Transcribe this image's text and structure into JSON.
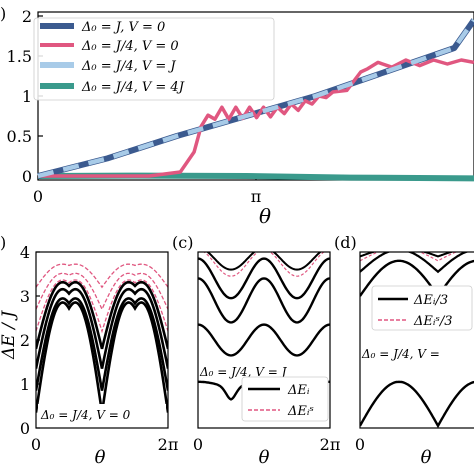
{
  "figure": {
    "panel_labels": {
      "a": ")",
      "b": ")",
      "c": "(c)",
      "d": "(d)"
    }
  },
  "chart_data": [
    {
      "panel": "a",
      "type": "line",
      "xlabel": "θ",
      "ylabel": "",
      "x_ticks": [
        {
          "value": 0,
          "label": "0"
        },
        {
          "value": 3.14159,
          "label": "π"
        }
      ],
      "y_ticks": [
        {
          "value": 0,
          "label": "0"
        },
        {
          "value": 0.5,
          "label": "0.5"
        },
        {
          "value": 1.0,
          "label": "1"
        },
        {
          "value": 1.5,
          "label": "1.5"
        },
        {
          "value": 2.0,
          "label": "2"
        }
      ],
      "xlim": [
        0,
        6.28318
      ],
      "ylim": [
        -0.05,
        2.05
      ],
      "legend_position": "top-left",
      "series": [
        {
          "name": "Δ₀ = J,  V = 0",
          "color": "#3b5a8f",
          "style": "solid-thick",
          "x": [
            0,
            1,
            2,
            3,
            4,
            5,
            6,
            6.28318
          ],
          "y": [
            0,
            0.22,
            0.5,
            0.75,
            1.0,
            1.3,
            1.6,
            1.95
          ]
        },
        {
          "name": "Δ₀ = J/4,  V = 0",
          "color": "#e05780",
          "style": "solid",
          "x": [
            0,
            1.6,
            2.05,
            2.25,
            2.35,
            2.45,
            2.55,
            2.65,
            2.75,
            2.85,
            2.95,
            3.05,
            3.15,
            3.25,
            3.35,
            3.45,
            3.55,
            3.65,
            3.75,
            3.85,
            3.95,
            4.05,
            4.15,
            4.25,
            4.45,
            4.65,
            4.75,
            4.9,
            5.1,
            5.3,
            5.5,
            5.7,
            5.9,
            6.1,
            6.28318
          ],
          "y": [
            0,
            0.0,
            0.05,
            0.3,
            0.62,
            0.76,
            0.71,
            0.86,
            0.71,
            0.86,
            0.72,
            0.86,
            0.73,
            0.86,
            0.74,
            0.86,
            0.78,
            0.9,
            0.82,
            0.94,
            0.9,
            1.0,
            0.98,
            1.05,
            1.07,
            1.3,
            1.34,
            1.42,
            1.36,
            1.45,
            1.38,
            1.45,
            1.4,
            1.45,
            1.42
          ]
        },
        {
          "name": "Δ₀ = J/4,  V = J",
          "color": "#a8cbe8",
          "style": "dashed-thick",
          "x": [
            0,
            1,
            2,
            3,
            4,
            5,
            6,
            6.28318
          ],
          "y": [
            0,
            0.22,
            0.5,
            0.75,
            1.0,
            1.3,
            1.6,
            1.95
          ]
        },
        {
          "name": "Δ₀ = J/4,  V = 4J",
          "color": "#3a9a8c",
          "style": "solid-thick",
          "x": [
            0,
            1.5,
            3.0,
            4.5,
            6.28318
          ],
          "y": [
            0.0,
            0.005,
            0.0,
            -0.02,
            -0.03
          ]
        }
      ]
    },
    {
      "panel": "b",
      "type": "line",
      "xlabel": "θ",
      "ylabel": "ΔE / J",
      "x_ticks": [
        {
          "value": 0,
          "label": "0"
        },
        {
          "value": 6.28318,
          "label": "2π"
        }
      ],
      "y_ticks": [
        {
          "value": 0,
          "label": "0"
        },
        {
          "value": 1,
          "label": "1"
        },
        {
          "value": 2,
          "label": "2"
        },
        {
          "value": 3,
          "label": "3"
        },
        {
          "value": 4,
          "label": "4"
        }
      ],
      "xlim": [
        0,
        6.28318
      ],
      "ylim": [
        0,
        4
      ],
      "annotation": "Δ₀ = J/4,  V = 0",
      "series": [
        {
          "name": "",
          "color": "#000000",
          "style": "solid",
          "amplitude": 4.3,
          "offset": 0.35
        },
        {
          "name": "",
          "color": "#000000",
          "style": "solid",
          "amplitude": 3.6,
          "offset": 0.85
        },
        {
          "name": "",
          "color": "#000000",
          "style": "solid",
          "amplitude": 3.1,
          "offset": 1.35
        },
        {
          "name": "",
          "color": "#000000",
          "style": "solid",
          "amplitude": 2.6,
          "offset": 1.8
        },
        {
          "name": "",
          "color": "#e05780",
          "style": "dashed",
          "amplitude": 2.0,
          "offset": 2.2
        },
        {
          "name": "",
          "color": "#e05780",
          "style": "dashed",
          "amplitude": 1.4,
          "offset": 2.7
        },
        {
          "name": "",
          "color": "#e05780",
          "style": "dashed",
          "amplitude": 0.9,
          "offset": 3.2
        }
      ]
    },
    {
      "panel": "c",
      "type": "line",
      "xlabel": "θ",
      "ylabel": "",
      "x_ticks": [
        {
          "value": 0,
          "label": "0"
        },
        {
          "value": 6.28318,
          "label": "2π"
        }
      ],
      "y_ticks": [],
      "xlim": [
        0,
        6.28318
      ],
      "ylim": [
        0,
        4
      ],
      "annotation": "Δ₀ = J/4,  V = J",
      "legend": [
        {
          "label": "ΔEᵢ",
          "color": "#000000",
          "style": "solid"
        },
        {
          "label": "ΔEᵢˢ",
          "color": "#e05780",
          "style": "dashed"
        }
      ],
      "legend_position": "bottom-right"
    },
    {
      "panel": "d",
      "type": "line",
      "xlabel": "θ",
      "ylabel": "",
      "x_ticks": [
        {
          "value": 0,
          "label": "0"
        }
      ],
      "y_ticks": [],
      "xlim": [
        0,
        6.28318
      ],
      "ylim": [
        0,
        4
      ],
      "annotation": "Δ₀ = J/4,  V =",
      "legend": [
        {
          "label": "ΔEᵢ/3",
          "color": "#000000",
          "style": "solid"
        },
        {
          "label": "ΔEᵢˢ/3",
          "color": "#e05780",
          "style": "dashed"
        }
      ],
      "legend_position": "top-right"
    }
  ]
}
